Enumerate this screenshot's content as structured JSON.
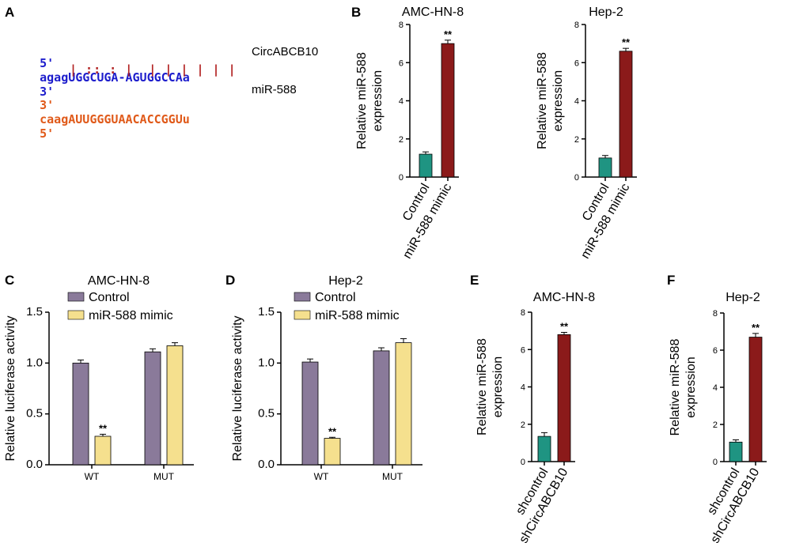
{
  "panels": {
    "A": "A",
    "B": "B",
    "C": "C",
    "D": "D",
    "E": "E",
    "F": "F"
  },
  "sequence": {
    "circ": {
      "prime_left": "5'",
      "seq": "agagUGGCUGA-AGUGGCCAa",
      "prime_right": "3'",
      "label": "CircABCB10",
      "color": "#1d1dcc"
    },
    "bonds": "| :: : |  | | | | | |",
    "mirna": {
      "prime_left": "3'",
      "seq": "caagAUUGGGUAACACCGGUu",
      "prime_right": "5'",
      "label": "miR-588",
      "color": "#e05a1a"
    },
    "bond_color": "#b22222"
  },
  "colors": {
    "teal": "#1f9482",
    "darkred": "#8b1a1a",
    "purple": "#8a7a9a",
    "yellow": "#f5e08e"
  },
  "chart_data": [
    {
      "id": "B1",
      "type": "bar",
      "title": "AMC-HN-8",
      "ylabel": "Relative miR-588 expression",
      "ylim": [
        0,
        8
      ],
      "yticks": [
        "0",
        "2",
        "4",
        "6",
        "8"
      ],
      "categories": [
        "Control",
        "miR-588 mimic"
      ],
      "values": [
        1.2,
        7.0
      ],
      "errors": [
        0.12,
        0.18
      ],
      "colors": [
        "teal",
        "darkred"
      ],
      "annotations": [
        "",
        "**"
      ]
    },
    {
      "id": "B2",
      "type": "bar",
      "title": "Hep-2",
      "ylabel": "Relative miR-588 expression",
      "ylim": [
        0,
        8
      ],
      "yticks": [
        "0",
        "2",
        "4",
        "6",
        "8"
      ],
      "categories": [
        "Control",
        "miR-588 mimic"
      ],
      "values": [
        1.0,
        6.6
      ],
      "errors": [
        0.13,
        0.15
      ],
      "colors": [
        "teal",
        "darkred"
      ],
      "annotations": [
        "",
        "**"
      ]
    },
    {
      "id": "C",
      "type": "bar",
      "title": "AMC-HN-8",
      "ylabel": "Relative luciferase activity",
      "ylim": [
        0,
        1.5
      ],
      "yticks": [
        "0.0",
        "0.5",
        "1.0",
        "1.5"
      ],
      "categories": [
        "WT",
        "MUT"
      ],
      "series": [
        {
          "name": "Control",
          "values": [
            1.0,
            1.11
          ],
          "errors": [
            0.03,
            0.03
          ],
          "color": "purple"
        },
        {
          "name": "miR-588 mimic",
          "values": [
            0.28,
            1.17
          ],
          "errors": [
            0.02,
            0.03
          ],
          "color": "yellow"
        }
      ],
      "annotations": [
        [
          "",
          "**"
        ],
        [
          "",
          ""
        ]
      ],
      "legend": "top-left"
    },
    {
      "id": "D",
      "type": "bar",
      "title": "Hep-2",
      "ylabel": "Relative luciferase activity",
      "ylim": [
        0,
        1.5
      ],
      "yticks": [
        "0.0",
        "0.5",
        "1.0",
        "1.5"
      ],
      "categories": [
        "WT",
        "MUT"
      ],
      "series": [
        {
          "name": "Control",
          "values": [
            1.01,
            1.12
          ],
          "errors": [
            0.03,
            0.03
          ],
          "color": "purple"
        },
        {
          "name": "miR-588 mimic",
          "values": [
            0.26,
            1.2
          ],
          "errors": [
            0.01,
            0.04
          ],
          "color": "yellow"
        }
      ],
      "annotations": [
        [
          "",
          "**"
        ],
        [
          "",
          ""
        ]
      ],
      "legend": "top-left"
    },
    {
      "id": "E",
      "type": "bar",
      "title": "AMC-HN-8",
      "ylabel": "Relative miR-588 expression",
      "ylim": [
        0,
        8
      ],
      "yticks": [
        "0",
        "2",
        "4",
        "6",
        "8"
      ],
      "categories": [
        "shcontrol",
        "shCircABCB10"
      ],
      "values": [
        1.35,
        6.8
      ],
      "errors": [
        0.2,
        0.12
      ],
      "colors": [
        "teal",
        "darkred"
      ],
      "annotations": [
        "",
        "**"
      ]
    },
    {
      "id": "F",
      "type": "bar",
      "title": "Hep-2",
      "ylabel": "Relative miR-588 expression",
      "ylim": [
        0,
        8
      ],
      "yticks": [
        "0",
        "2",
        "4",
        "6",
        "8"
      ],
      "categories": [
        "shcontrol",
        "shCircABCB10"
      ],
      "values": [
        1.05,
        6.7
      ],
      "errors": [
        0.12,
        0.2
      ],
      "colors": [
        "teal",
        "darkred"
      ],
      "annotations": [
        "",
        "**"
      ]
    }
  ]
}
